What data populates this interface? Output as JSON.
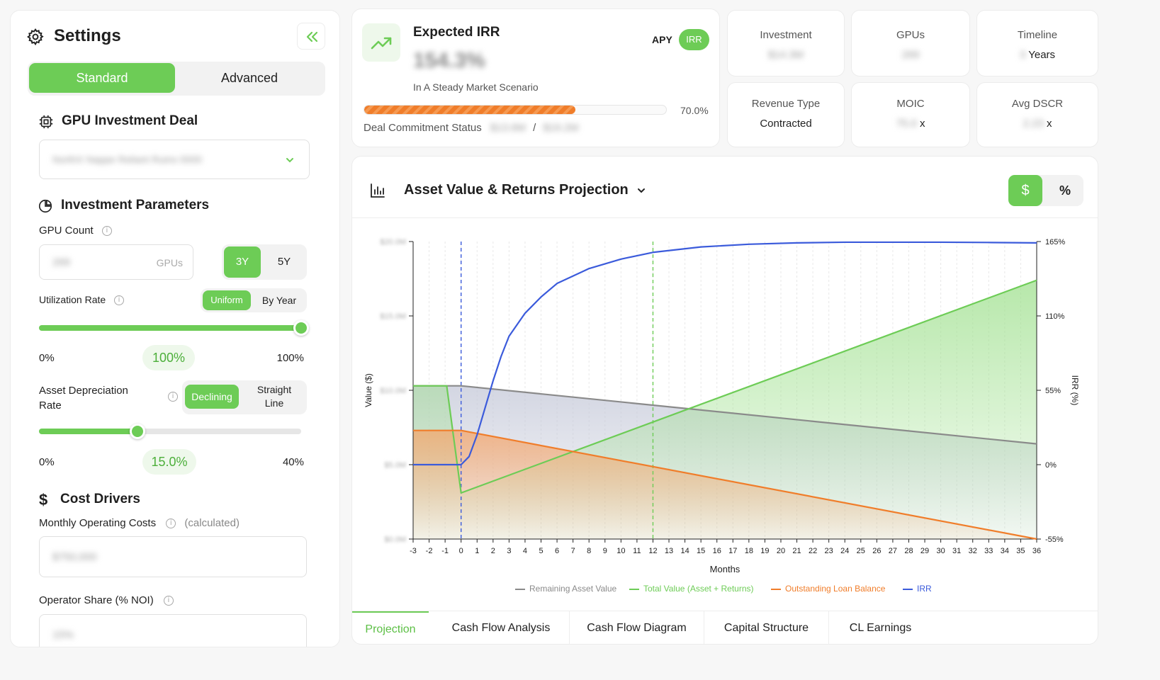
{
  "sidebar": {
    "title": "Settings",
    "mode_tabs": {
      "standard": "Standard",
      "advanced": "Advanced"
    },
    "deal_section": {
      "title": "GPU Investment Deal",
      "select_value": "NorthX Nappe Reliant Ruins 0000"
    },
    "params_section": {
      "title": "Investment Parameters",
      "gpu_count": {
        "label": "GPU Count",
        "value": "269",
        "suffix": "GPUs",
        "term_3y": "3Y",
        "term_5y": "5Y"
      },
      "utilization": {
        "label": "Utilization Rate",
        "uniform": "Uniform",
        "by_year": "By Year",
        "min": "0%",
        "value": "100%",
        "max": "100%",
        "fraction": 1.0
      },
      "depreciation": {
        "label_line1": "Asset Depreciation",
        "label_line2": "Rate",
        "declining": "Declining",
        "straight_line_1": "Straight",
        "straight_line_2": "Line",
        "min": "0%",
        "value": "15.0%",
        "max": "40%",
        "fraction": 0.375
      }
    },
    "cost_section": {
      "title": "Cost Drivers",
      "monthly_costs": {
        "label": "Monthly Operating Costs",
        "note": "(calculated)",
        "value": "$750,000"
      },
      "operator_share": {
        "label": "Operator Share (% NOI)",
        "value": "15%"
      }
    }
  },
  "irr_card": {
    "title": "Expected IRR",
    "value": "154.3%",
    "subtitle": "In A Steady Market Scenario",
    "toggle_apy": "APY",
    "toggle_irr": "IRR",
    "progress_percent": "70.0%",
    "progress_fraction": 0.7,
    "commitment_label": "Deal Commitment Status",
    "commitment_raised": "$13.6M",
    "commitment_sep": "/",
    "commitment_total": "$19.2M"
  },
  "stats": [
    {
      "title": "Investment",
      "value": "$14.3M",
      "suffix": ""
    },
    {
      "title": "GPUs",
      "value": "269",
      "suffix": ""
    },
    {
      "title": "Timeline",
      "value": "3",
      "suffix": "Years"
    },
    {
      "title": "Revenue Type",
      "value": "Contracted",
      "suffix": ""
    },
    {
      "title": "MOIC",
      "value": "75.0",
      "suffix": "x"
    },
    {
      "title": "Avg DSCR",
      "value": "2.23",
      "suffix": "x"
    }
  ],
  "chart_panel": {
    "title": "Asset Value & Returns Projection",
    "unit_dollar": "$",
    "unit_percent": "%",
    "tabs": [
      "Projection",
      "Cash Flow Analysis",
      "Cash Flow Diagram",
      "Capital Structure",
      "CL Earnings"
    ],
    "active_tab": "Projection"
  },
  "chart_data": {
    "type": "line",
    "xlabel": "Months",
    "ylabel": "Value ($)",
    "ylabel_right": "IRR (%)",
    "xlim": [
      -3,
      36
    ],
    "x_ticks": [
      -3,
      -2,
      -1,
      0,
      1,
      2,
      3,
      4,
      5,
      6,
      7,
      8,
      9,
      10,
      11,
      12,
      13,
      14,
      15,
      16,
      17,
      18,
      19,
      20,
      21,
      22,
      23,
      24,
      25,
      26,
      27,
      28,
      29,
      30,
      31,
      32,
      33,
      34,
      35,
      36
    ],
    "y_left_ticks": [
      {
        "value": 0,
        "label": "$0.0M"
      },
      {
        "value": 5,
        "label": "$5.0M"
      },
      {
        "value": 10,
        "label": "$10.0M"
      },
      {
        "value": 15,
        "label": "$15.0M"
      },
      {
        "value": 20,
        "label": "$20.0M"
      }
    ],
    "ylim_left": [
      0,
      20
    ],
    "y_right_ticks": [
      {
        "value": -55,
        "label": "-55%"
      },
      {
        "value": 0,
        "label": "0%"
      },
      {
        "value": 55,
        "label": "55%"
      },
      {
        "value": 110,
        "label": "110%"
      },
      {
        "value": 165,
        "label": "165%"
      }
    ],
    "ylim_right": [
      -55,
      165
    ],
    "vlines": [
      {
        "x": 0,
        "color": "#3b5bdb"
      },
      {
        "x": 12,
        "color": "#6dcc56"
      }
    ],
    "grid": true,
    "legend_position": "bottom",
    "series": [
      {
        "name": "Remaining Asset Value",
        "color": "#8a8a8a",
        "axis": "left",
        "fill": "#c4c8d8",
        "x": [
          -3,
          0,
          36
        ],
        "y": [
          10.3,
          10.3,
          6.4
        ]
      },
      {
        "name": "Total Value (Asset + Returns)",
        "color": "#6dcc56",
        "axis": "left",
        "fill": "#9fe08e",
        "x": [
          -3,
          -0.9,
          0,
          36
        ],
        "y": [
          10.3,
          10.3,
          3.1,
          17.4
        ]
      },
      {
        "name": "Outstanding Loan Balance",
        "color": "#f07d2a",
        "axis": "left",
        "fill": "#f5a56a",
        "x": [
          -3,
          0,
          36
        ],
        "y": [
          7.3,
          7.3,
          0
        ]
      },
      {
        "name": "IRR",
        "color": "#3b5bdb",
        "axis": "right",
        "x": [
          -3,
          0,
          0.5,
          1,
          1.5,
          2,
          2.5,
          3,
          4,
          5,
          6,
          8,
          10,
          12,
          15,
          18,
          21,
          24,
          27,
          30,
          33,
          36
        ],
        "y": [
          0,
          0,
          6,
          22,
          42,
          62,
          80,
          95,
          112,
          124,
          134,
          145,
          152,
          157,
          161,
          163,
          164,
          164.5,
          164.5,
          164.5,
          164.3,
          164
        ]
      }
    ]
  },
  "colors": {
    "accent": "#6dcc56",
    "orange": "#f07d2a",
    "blue": "#3b5bdb",
    "gray": "#8a8a8a"
  }
}
